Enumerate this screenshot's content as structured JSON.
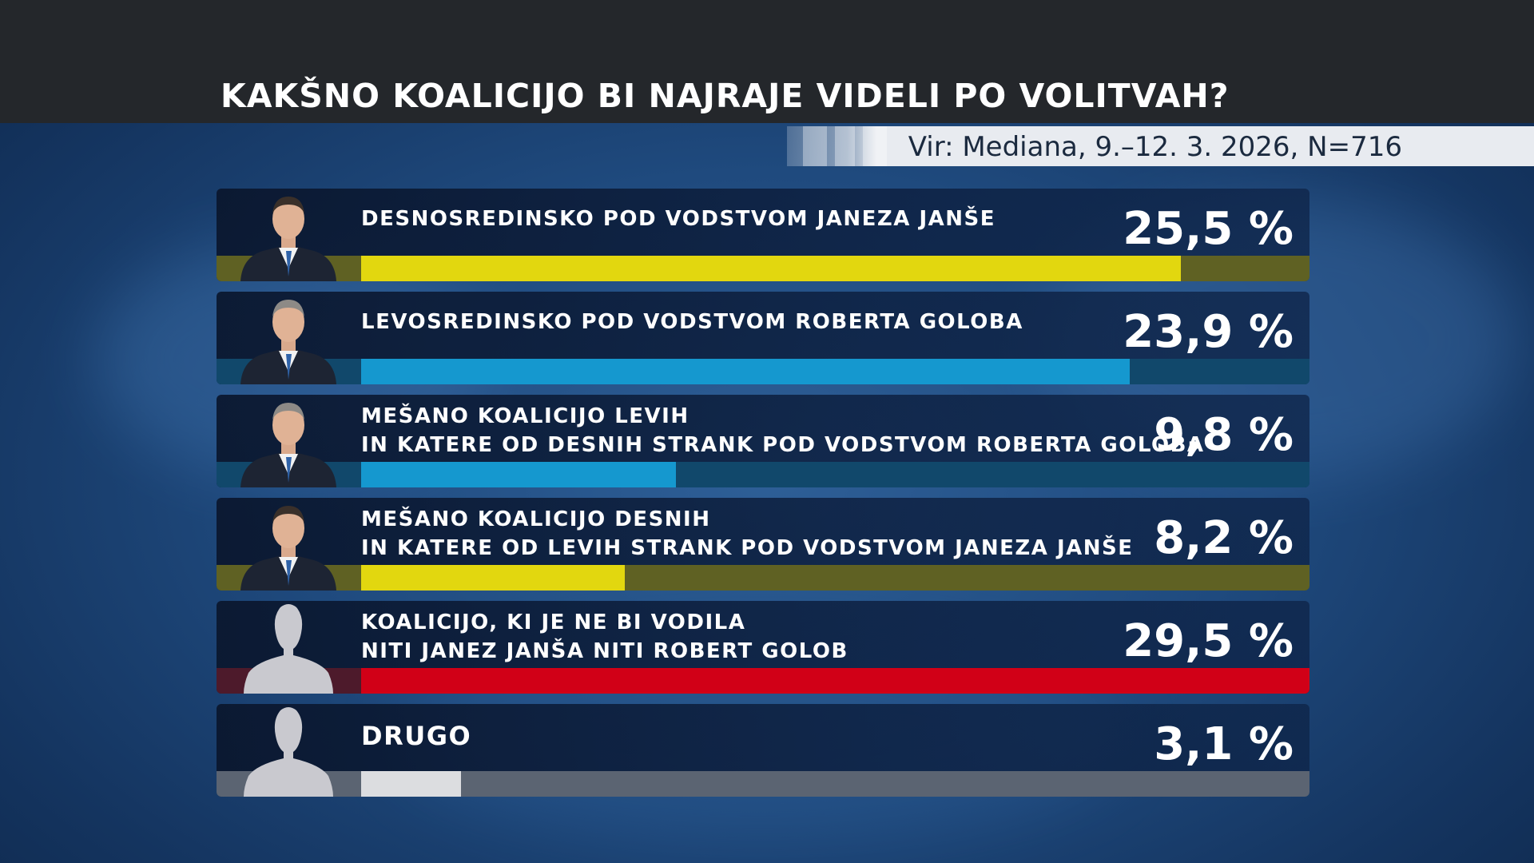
{
  "title": "KAKŠNO KOALICIJO BI NAJRAJE VIDELI PO VOLITVAH?",
  "source": "Vir: Mediana, 9.–12. 3. 2026, N=716",
  "colors": {
    "yellow": "#e2d70f",
    "blue": "#1598cf",
    "red": "#d10017",
    "grey": "#dcdde0"
  },
  "chart_data": {
    "type": "bar",
    "orientation": "horizontal",
    "xlim": [
      0,
      29.5
    ],
    "categories": [
      [
        "DESNOSREDINSKO POD VODSTVOM JANEZA  JANŠE"
      ],
      [
        "LEVOSREDINSKO POD VODSTVOM ROBERTA GOLOBA"
      ],
      [
        "MEŠANO KOALICIJO LEVIH",
        "IN KATERE OD DESNIH STRANK POD VODSTVOM ROBERTA GOLOBA"
      ],
      [
        "MEŠANO KOALICIJO DESNIH",
        "IN KATERE OD LEVIH STRANK POD VODSTVOM  JANEZA  JANŠE"
      ],
      [
        "KOALICIJO, KI JE NE BI VODILA",
        "NITI JANEZ JANŠA NITI ROBERT GOLOB"
      ],
      [
        "DRUGO"
      ]
    ],
    "values": [
      25.5,
      23.9,
      9.8,
      8.2,
      29.5,
      3.1
    ],
    "value_labels": [
      "25,5 %",
      "23,9 %",
      "9,8 %",
      "8,2 %",
      "29,5 %",
      "3,1 %"
    ],
    "bar_colors": [
      "#e2d70f",
      "#1598cf",
      "#1598cf",
      "#e2d70f",
      "#d10017",
      "#dcdde0"
    ],
    "track_colors": [
      "#5f6123",
      "#11486b",
      "#11486b",
      "#5f6123",
      "#4d1a2b",
      "#5b6472"
    ],
    "portraits": [
      "man-dark-hair",
      "man-grey-hair",
      "man-grey-hair",
      "man-dark-hair",
      "silhouette",
      "silhouette"
    ]
  }
}
